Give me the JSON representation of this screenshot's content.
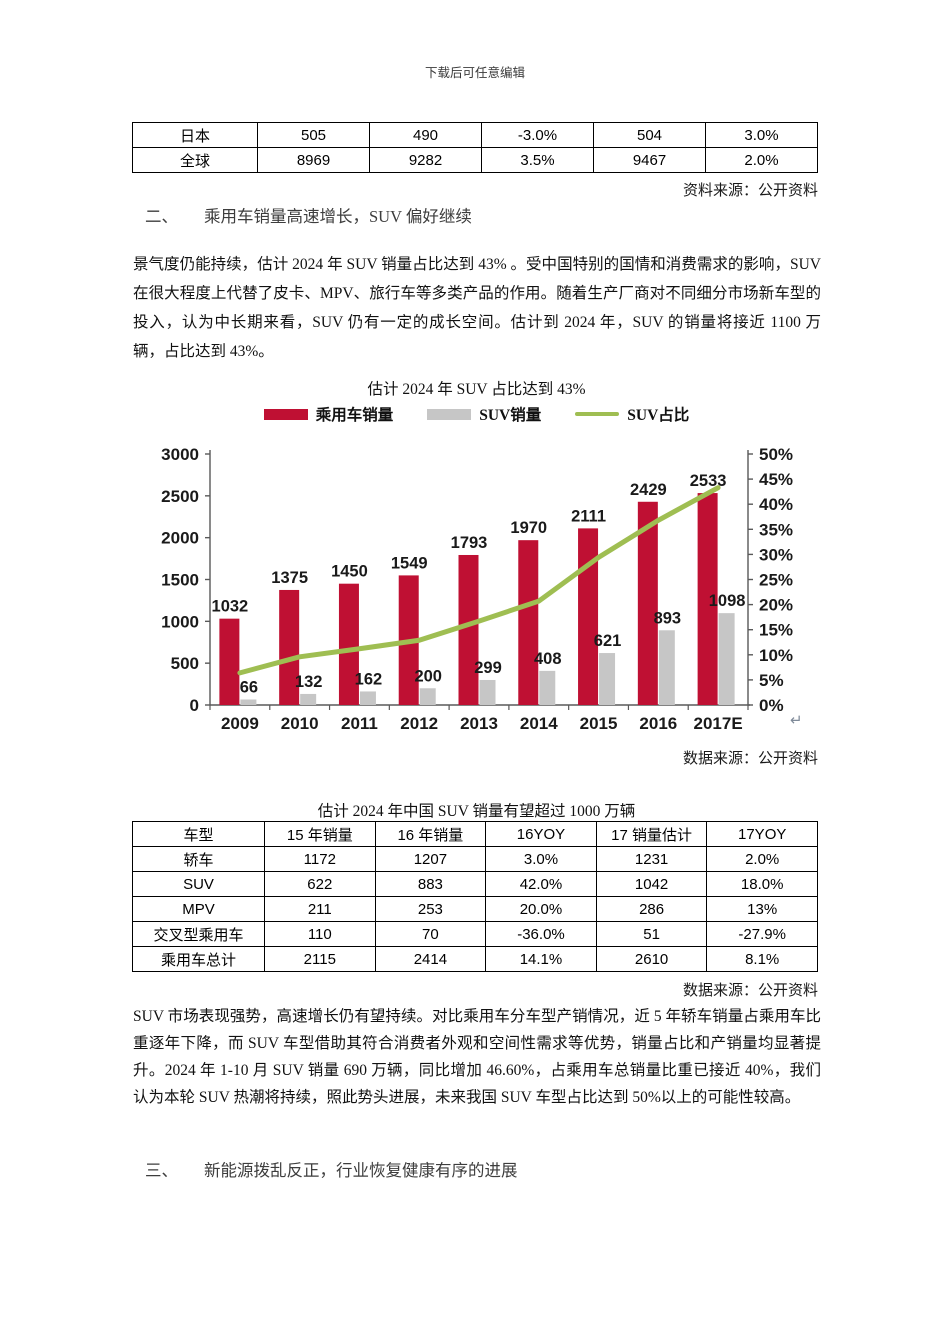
{
  "page": {
    "watermark": "下载后可任意编辑"
  },
  "top_table": {
    "rows": [
      [
        "日本",
        "505",
        "490",
        "-3.0%",
        "504",
        "3.0%"
      ],
      [
        "全球",
        "8969",
        "9282",
        "3.5%",
        "9467",
        "2.0%"
      ]
    ],
    "source": "资料来源：公开资料"
  },
  "section2": {
    "number": "二、",
    "title": "乘用车销量高速增长，SUV 偏好继续",
    "paragraph": "景气度仍能持续，估计 2024 年 SUV 销量占比达到 43% 。受中国特别的国情和消费需求的影响，SUV 在很大程度上代替了皮卡、MPV、旅行车等多类产品的作用。随着生产厂商对不同细分市场新车型的投入，认为中长期来看，SUV 仍有一定的成长空间。估计到 2024 年，SUV 的销量将接近 1100 万辆，占比达到 43%。"
  },
  "chart_data": {
    "type": "bar",
    "title": "估计 2024 年 SUV 占比达到 43%",
    "categories": [
      "2009",
      "2010",
      "2011",
      "2012",
      "2013",
      "2014",
      "2015",
      "2016",
      "2017E"
    ],
    "series": [
      {
        "name": "乘用车销量",
        "kind": "bar",
        "color": "#BF1033",
        "axis": "left",
        "values": [
          1032,
          1375,
          1450,
          1549,
          1793,
          1970,
          2111,
          2429,
          2533
        ]
      },
      {
        "name": "SUV销量",
        "kind": "bar",
        "color": "#C6C6C6",
        "axis": "left",
        "values": [
          66,
          132,
          162,
          200,
          299,
          408,
          621,
          893,
          1098
        ]
      },
      {
        "name": "SUV占比",
        "kind": "line",
        "color": "#9FBE52",
        "axis": "right",
        "values": [
          6.4,
          9.6,
          11.2,
          12.9,
          16.7,
          20.7,
          29.4,
          36.8,
          43.3
        ]
      }
    ],
    "left_axis": {
      "min": 0,
      "max": 3000,
      "step": 500
    },
    "right_axis": {
      "min": 0,
      "max": 50,
      "step": 5,
      "suffix": "%"
    },
    "legend_position": "top",
    "grid": false,
    "source": "数据来源：公开资料",
    "return_mark": "↵"
  },
  "suv_table": {
    "title": "估计 2024 年中国 SUV 销量有望超过 1000 万辆",
    "headers": [
      "车型",
      "15 年销量",
      "16 年销量",
      "16YOY",
      "17 销量估计",
      "17YOY"
    ],
    "rows": [
      [
        "轿车",
        "1172",
        "1207",
        "3.0%",
        "1231",
        "2.0%"
      ],
      [
        "SUV",
        "622",
        "883",
        "42.0%",
        "1042",
        "18.0%"
      ],
      [
        "MPV",
        "211",
        "253",
        "20.0%",
        "286",
        "13%"
      ],
      [
        "交叉型乘用车",
        "110",
        "70",
        "-36.0%",
        "51",
        "-27.9%"
      ],
      [
        "乘用车总计",
        "2115",
        "2414",
        "14.1%",
        "2610",
        "8.1%"
      ]
    ],
    "source": "数据来源：公开资料",
    "paragraph": "SUV 市场表现强势，高速增长仍有望持续。对比乘用车分车型产销情况，近 5 年轿车销量占乘用车比重逐年下降，而 SUV 车型借助其符合消费者外观和空间性需求等优势，销量占比和产销量均显著提升。2024 年 1-10 月 SUV 销量 690 万辆，同比增加 46.60%，占乘用车总销量比重已接近 40%，我们认为本轮 SUV 热潮将持续，照此势头进展，未来我国 SUV 车型占比达到 50%以上的可能性较高。"
  },
  "section3": {
    "number": "三、",
    "title": "新能源拨乱反正，行业恢复健康有序的进展"
  }
}
